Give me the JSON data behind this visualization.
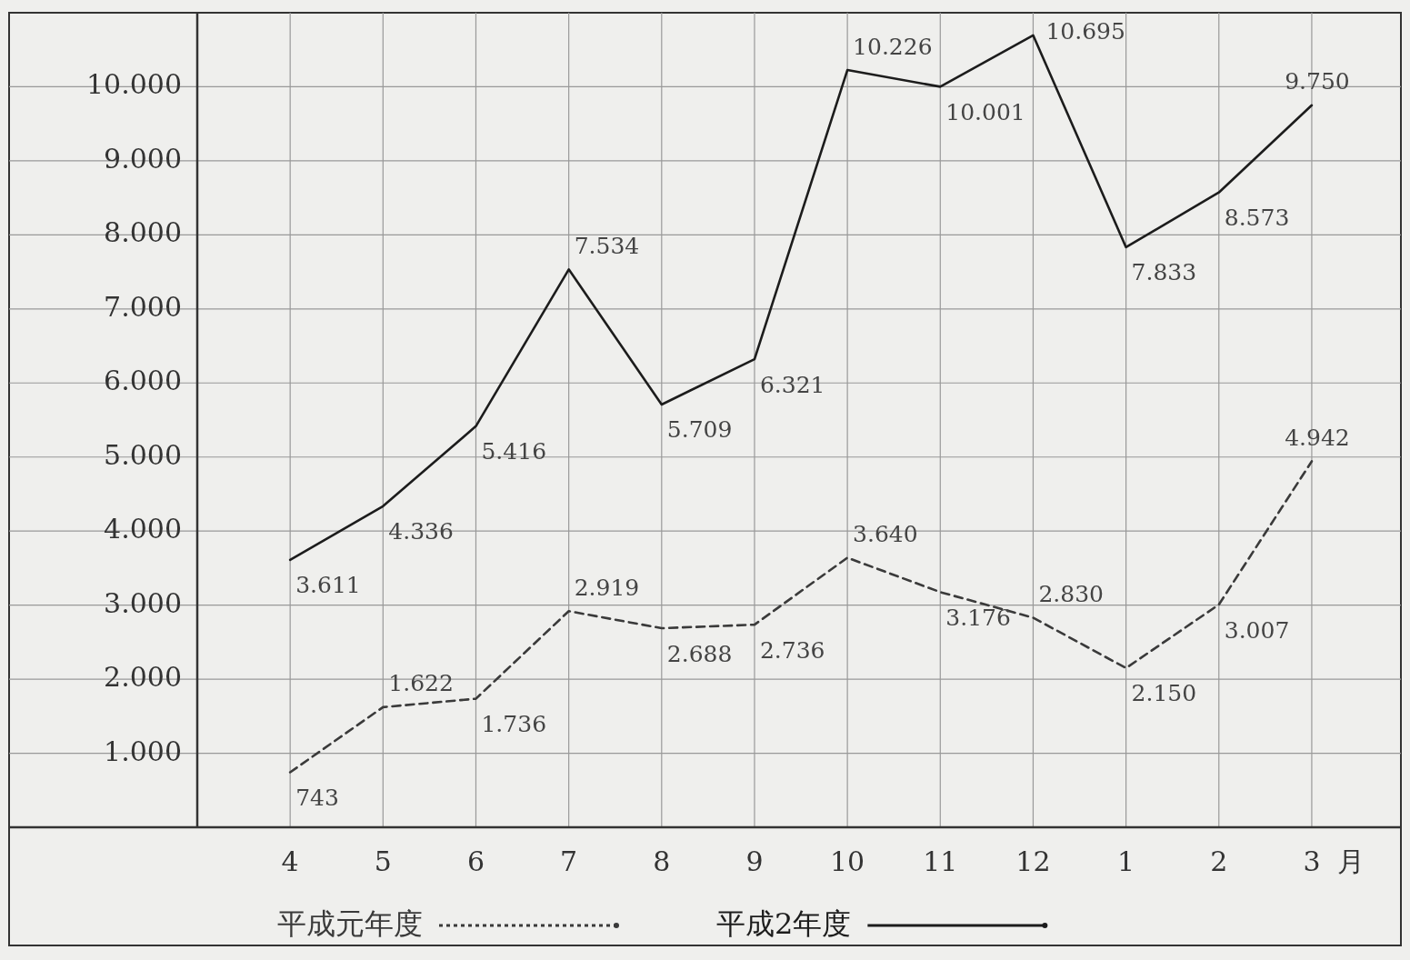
{
  "chart_data": {
    "type": "line",
    "categories": [
      "4",
      "5",
      "6",
      "7",
      "8",
      "9",
      "10",
      "11",
      "12",
      "1",
      "2",
      "3"
    ],
    "xlabel": "月",
    "series": [
      {
        "name": "平成元年度",
        "color": "#3a3a3a",
        "line_style": "dashed",
        "values": [
          743,
          1622,
          1736,
          2919,
          2688,
          2736,
          3640,
          3176,
          2830,
          2150,
          3007,
          4942
        ],
        "value_labels": [
          "743",
          "1.622",
          "1.736",
          "2.919",
          "2.688",
          "2.736",
          "3.640",
          "3.176",
          "2.830",
          "2.150",
          "3.007",
          "4.942"
        ]
      },
      {
        "name": "平成2年度",
        "color": "#1c1c1c",
        "line_style": "solid",
        "values": [
          3611,
          4336,
          5416,
          7534,
          5709,
          6321,
          10226,
          10001,
          10695,
          7833,
          8573,
          9750
        ],
        "value_labels": [
          "3.611",
          "4.336",
          "5.416",
          "7.534",
          "5.709",
          "6.321",
          "10.226",
          "10.001",
          "10.695",
          "7.833",
          "8.573",
          "9.750"
        ]
      }
    ],
    "ylim": [
      0,
      11000
    ],
    "yticks": [
      {
        "value": 1000,
        "label": "1.000"
      },
      {
        "value": 2000,
        "label": "2.000"
      },
      {
        "value": 3000,
        "label": "3.000"
      },
      {
        "value": 4000,
        "label": "4.000"
      },
      {
        "value": 5000,
        "label": "5.000"
      },
      {
        "value": 6000,
        "label": "6.000"
      },
      {
        "value": 7000,
        "label": "7.000"
      },
      {
        "value": 8000,
        "label": "8.000"
      },
      {
        "value": 9000,
        "label": "9.000"
      },
      {
        "value": 10000,
        "label": "10.000"
      }
    ],
    "grid": true,
    "legend": "bottom",
    "marker": "none"
  }
}
